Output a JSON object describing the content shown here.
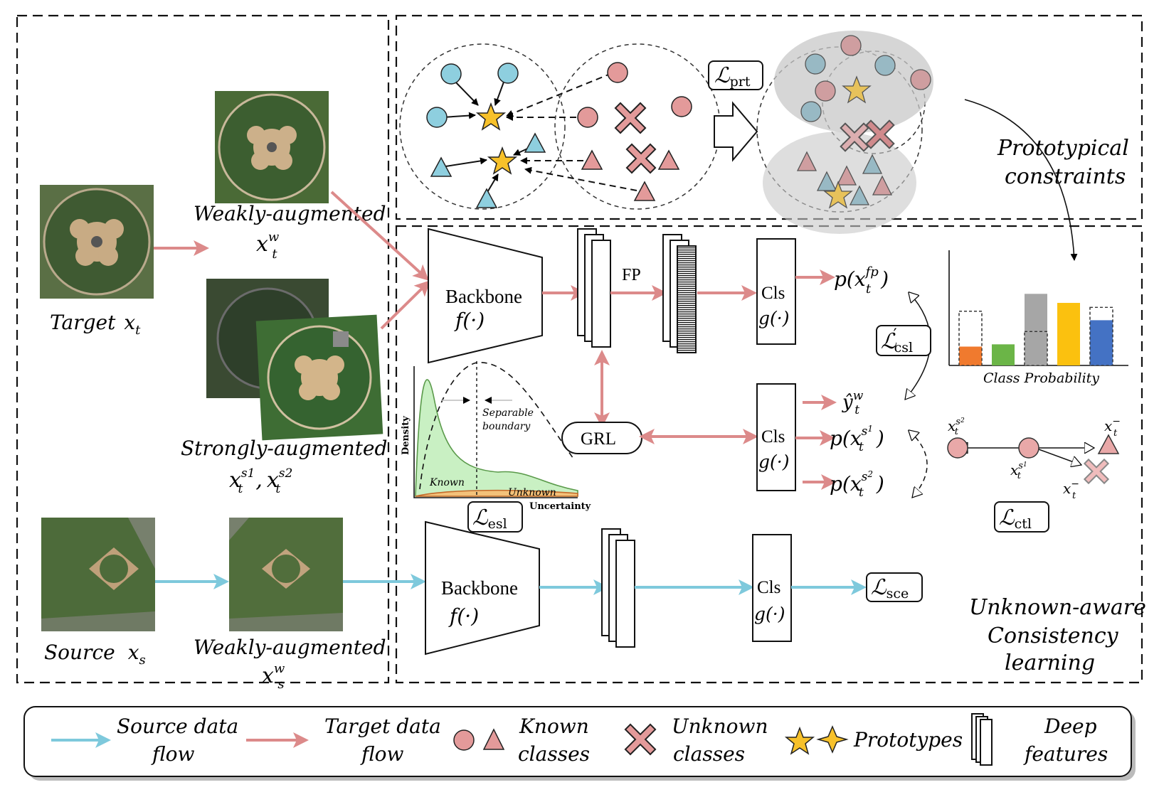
{
  "target_image_label": "Target",
  "target_image_var": "x",
  "target_image_sub": "t",
  "weak_target_label": "Weakly-augmented",
  "weak_target_var": "x",
  "weak_target_sup": "w",
  "weak_target_sub": "t",
  "strong_label": "Strongly-augmented",
  "strong_var_a": "x",
  "strong_sup_a": "s1",
  "strong_sub_a": "t",
  "strong_comma": ",",
  "strong_var_b": "x",
  "strong_sup_b": "s2",
  "strong_sub_b": "t",
  "source_image_label": "Source",
  "source_image_var": "x",
  "source_image_sub": "s",
  "weak_source_label": "Weakly-augmented",
  "weak_source_var": "x",
  "weak_source_sup": "w",
  "weak_source_sub": "s",
  "loss_prt": "prt",
  "loss_csl_prime": "′",
  "loss_csl": "csl",
  "loss_esl": "esl",
  "loss_ctl": "ctl",
  "loss_sce": "sce",
  "loss_symbol": "ℒ",
  "prototypical_line1": "Prototypical",
  "prototypical_line2": "constraints",
  "backbone_label": "Backbone",
  "backbone_fn": "f(·)",
  "fp_label": "FP",
  "cls_label": "Cls",
  "cls_fn": "g(·)",
  "grl_label": "GRL",
  "p_out_fp": "p(x",
  "p_out_fp_sup": "fp",
  "p_out_fp_sub": "t",
  "p_out_close": ")",
  "yhat_out": "ŷ",
  "yhat_sup": "w",
  "yhat_sub": "t",
  "p_out_s1": "p(x",
  "p_out_s1_sup": "s",
  "p_out_s1_supsub": "1",
  "p_out_s1_sub": "t",
  "p_out_s2": "p(x",
  "p_out_s2_sup": "s",
  "p_out_s2_supsub": "2",
  "p_out_s2_sub": "t",
  "class_probability_label": "Class Probability",
  "density_label": "Density",
  "uncertainty_label": "Uncertainty",
  "known_label": "Known",
  "unknown_label": "Unknown",
  "separable_line1": "Separable",
  "separable_line2": "boundary",
  "ctl_top_left": "x",
  "ctl_top_left_sup": "s",
  "ctl_top_left_supsub": "2",
  "ctl_top_left_sub": "t",
  "ctl_top_right": "x",
  "ctl_top_right_sup": "−",
  "ctl_top_right_sub": "t",
  "ctl_mid": "x",
  "ctl_mid_sup": "s",
  "ctl_mid_supsub": "1",
  "ctl_mid_sub": "t",
  "ctl_bot": "x",
  "ctl_bot_sup": "−",
  "ctl_bot_sub": "t",
  "unknown_aware_line1": "Unknown-aware",
  "unknown_aware_line2": "Consistency",
  "unknown_aware_line3": "learning",
  "legend": {
    "source_flow_line1": "Source data",
    "source_flow_line2": "flow",
    "target_flow_line1": "Target data",
    "target_flow_line2": "flow",
    "known_line1": "Known",
    "known_line2": "classes",
    "unknown_line1": "Unknown",
    "unknown_line2": "classes",
    "prototypes": "Prototypes",
    "deep_line1": "Deep",
    "deep_line2": "features"
  },
  "colors": {
    "source_flow": "#7ec9dc",
    "target_flow": "#dc8a8a",
    "known_blue": "#8ecfdf",
    "known_red": "#e39a9a",
    "prototype": "#f7c12a",
    "bar_orange": "#f07a2e",
    "bar_green": "#6bb547",
    "bar_gray": "#a6a6a6",
    "bar_yellow": "#fbc10f",
    "bar_blue": "#4472c4"
  },
  "chart_data": {
    "type": "bar",
    "title": "",
    "xlabel": "Class Probability",
    "ylabel": "",
    "categories": [
      "",
      "",
      "",
      "",
      ""
    ],
    "values": [
      0.25,
      0.28,
      0.95,
      0.83,
      0.6
    ],
    "dashed_values": [
      0.72,
      0,
      0.45,
      0,
      0.77
    ],
    "ylim": [
      0,
      1
    ]
  }
}
